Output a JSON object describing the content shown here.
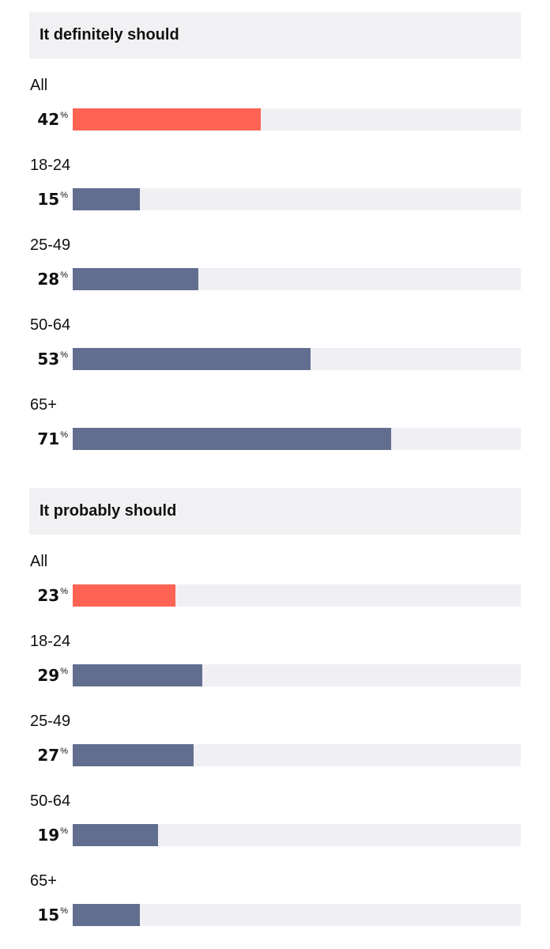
{
  "chart_data": [
    {
      "type": "bar",
      "title": "It definitely should",
      "categories": [
        "All",
        "18-24",
        "25-49",
        "50-64",
        "65+"
      ],
      "values": [
        42,
        15,
        28,
        53,
        71
      ],
      "unit": "%",
      "xlim": [
        0,
        100
      ],
      "colors": [
        "#ff6354",
        "#626e8f",
        "#626e8f",
        "#626e8f",
        "#626e8f"
      ]
    },
    {
      "type": "bar",
      "title": "It probably should",
      "categories": [
        "All",
        "18-24",
        "25-49",
        "50-64",
        "65+"
      ],
      "values": [
        23,
        29,
        27,
        19,
        15
      ],
      "unit": "%",
      "xlim": [
        0,
        100
      ],
      "colors": [
        "#ff6354",
        "#626e8f",
        "#626e8f",
        "#626e8f",
        "#626e8f"
      ]
    }
  ],
  "colors": {
    "highlight": "#ff6354",
    "bar": "#626e8f",
    "track": "#f0f0f4",
    "header_bg": "#f1f1f4"
  }
}
